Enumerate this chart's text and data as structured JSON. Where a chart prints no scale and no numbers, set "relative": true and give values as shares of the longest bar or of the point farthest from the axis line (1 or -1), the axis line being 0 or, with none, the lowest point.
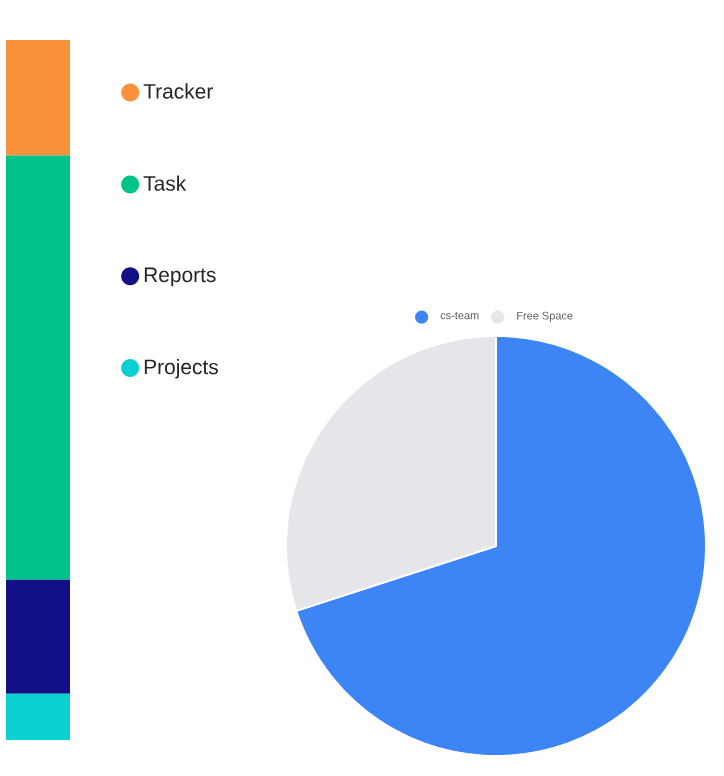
{
  "chart_data": [
    {
      "type": "bar",
      "stacked": true,
      "relative": true,
      "categories": [
        null
      ],
      "legend": "right",
      "series": [
        {
          "name": "Projects",
          "color": "#0ccfcf",
          "values": [
            0.066
          ]
        },
        {
          "name": "Reports",
          "color": "#130f86",
          "values": [
            0.163
          ]
        },
        {
          "name": "Task",
          "color": "#00c389",
          "values": [
            0.606
          ]
        },
        {
          "name": "Tracker",
          "color": "#fa923c",
          "values": [
            0.165
          ]
        }
      ]
    },
    {
      "type": "pie",
      "categories": [
        "cs-team",
        "Free Space"
      ],
      "values": [
        70,
        30
      ],
      "colors": [
        "#3d85f5",
        "#e5e6ea"
      ],
      "legend": "top"
    }
  ]
}
